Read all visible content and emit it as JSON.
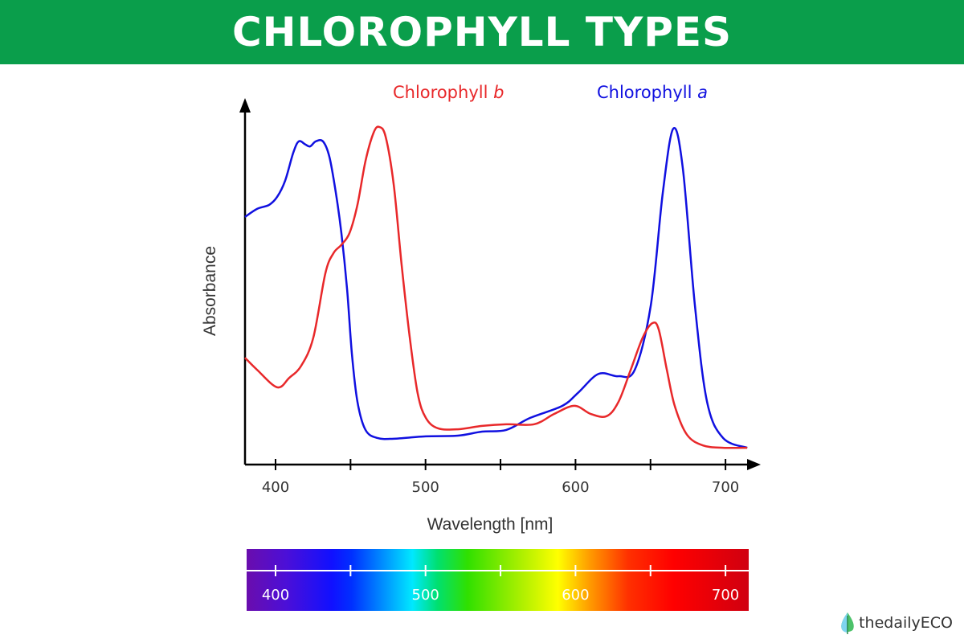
{
  "header": {
    "title": "CHLOROPHYLL TYPES"
  },
  "logo": {
    "text": "thedailyECO"
  },
  "colors": {
    "chl_a": "#1010e0",
    "chl_b": "#e8282a",
    "title_bg": "#0a9e4b"
  },
  "chart_data": {
    "type": "line",
    "title": "",
    "xlabel": "Wavelength [nm]",
    "ylabel": "Absorbance",
    "xlim": [
      380,
      715
    ],
    "ylim": [
      0,
      1.08
    ],
    "x_ticks": [
      400,
      450,
      500,
      550,
      600,
      650,
      700
    ],
    "x_tick_labels": [
      "400",
      "500",
      "600",
      "700"
    ],
    "x_tick_label_values": [
      400,
      500,
      600,
      700
    ],
    "grid": false,
    "legend": [
      {
        "prefix": "Chlorophyll ",
        "suffix": "b",
        "series": 1
      },
      {
        "prefix": "Chlorophyll ",
        "suffix": "a",
        "series": 0
      }
    ],
    "series": [
      {
        "name": "Chlorophyll a",
        "color": "#1010e0",
        "x": [
          379.6,
          387.7,
          395.7,
          401.1,
          406.4,
          411.8,
          415.5,
          419.8,
          423.0,
          426.8,
          431.6,
          435.9,
          440.2,
          443.9,
          447.7,
          450.9,
          454.6,
          460.0,
          468.0,
          478.8,
          500.2,
          521.6,
          537.7,
          553.8,
          569.8,
          591.3,
          602.0,
          615.4,
          628.7,
          639.5,
          650.2,
          658.2,
          665.2,
          671.6,
          679.6,
          687.7,
          698.4,
          714.5
        ],
        "y": [
          0.737,
          0.761,
          0.773,
          0.797,
          0.845,
          0.928,
          0.962,
          0.953,
          0.947,
          0.962,
          0.962,
          0.916,
          0.809,
          0.689,
          0.522,
          0.33,
          0.187,
          0.103,
          0.079,
          0.077,
          0.084,
          0.086,
          0.098,
          0.103,
          0.139,
          0.175,
          0.215,
          0.27,
          0.263,
          0.282,
          0.474,
          0.809,
          1.0,
          0.88,
          0.474,
          0.187,
          0.079,
          0.05
        ]
      },
      {
        "name": "Chlorophyll b",
        "color": "#e8282a",
        "x": [
          379.6,
          387.7,
          401.1,
          409.1,
          417.1,
          425.2,
          433.2,
          438.6,
          443.9,
          449.3,
          454.6,
          460.0,
          465.4,
          469.1,
          473.4,
          478.8,
          484.1,
          489.5,
          494.8,
          500.2,
          508.2,
          521.6,
          537.7,
          553.8,
          572.5,
          585.9,
          599.3,
          610.0,
          620.7,
          628.7,
          636.8,
          644.8,
          651.3,
          655.5,
          660.9,
          666.2,
          674.3,
          685.0,
          698.4,
          714.5
        ],
        "y": [
          0.318,
          0.282,
          0.23,
          0.258,
          0.294,
          0.378,
          0.569,
          0.629,
          0.654,
          0.689,
          0.773,
          0.904,
          0.988,
          1.005,
          0.976,
          0.833,
          0.593,
          0.378,
          0.211,
          0.139,
          0.108,
          0.105,
          0.115,
          0.12,
          0.12,
          0.151,
          0.175,
          0.151,
          0.144,
          0.187,
          0.282,
          0.378,
          0.421,
          0.402,
          0.282,
          0.174,
          0.089,
          0.057,
          0.05,
          0.05
        ]
      }
    ],
    "spectrum_bar": {
      "ticks": [
        400,
        450,
        500,
        550,
        600,
        650,
        700
      ],
      "labels": [
        "400",
        "500",
        "600",
        "700"
      ],
      "label_values": [
        400,
        500,
        600,
        700
      ]
    }
  }
}
